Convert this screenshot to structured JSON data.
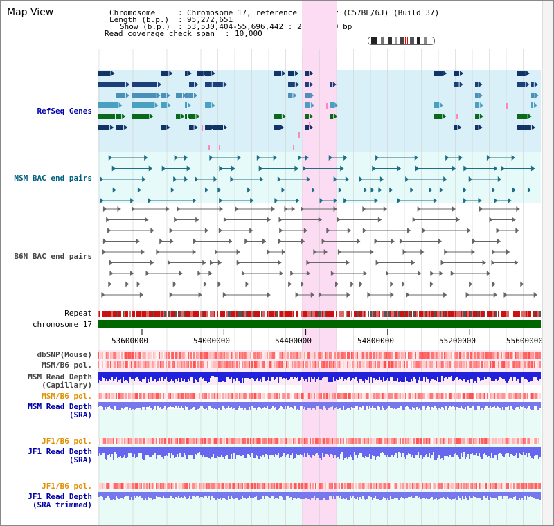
{
  "window": {
    "title": "Map View"
  },
  "info": {
    "chromosome_label": "Chromosome",
    "chromosome_value": "Chromosome 17, reference assembly (C57BL/6J) (Build 37)",
    "length_label": "Length (b.p.)",
    "length_value": "95,272,651",
    "show_label": "Show (b.p.)",
    "show_value": "53,530,404-55,696,442 : 2,166,039 bp",
    "coverage_label": "Read coverage check span",
    "coverage_value": "10,000"
  },
  "tracks": {
    "refseq": "RefSeq Genes",
    "msm_bac": "MSM BAC end pairs",
    "b6n_bac": "B6N BAC end pairs",
    "repeat": "Repeat",
    "chromosome": "chromosome 17",
    "dbsnp": "dbSNP(Mouse)",
    "msm_b6_pol": "MSM/B6 pol.",
    "msm_depth_cap": "MSM Read Depth\n(Capillary)",
    "msm_b6_pol_sra": "MSM/B6 pol.",
    "msm_depth_sra": "MSM Read Depth\n(SRA)",
    "jf1_b6_pol": "JF1/B6 pol.",
    "jf1_depth_sra": "JF1 Read Depth\n(SRA)",
    "jf1_b6_pol_trim": "JF1/B6 pol.",
    "jf1_depth_trim": "JF1 Read Depth\n(SRA trimmed)"
  },
  "axis": {
    "ticks": [
      "53600000",
      "54000000",
      "54400000",
      "54800000",
      "55200000",
      "55600000"
    ],
    "range": [
      53530404,
      55696442
    ]
  },
  "colors": {
    "refseq_bg": "#daf0f8",
    "bac_bg": "#e6fafa",
    "highlight": "#fbdcf3",
    "chromosome": "#006600",
    "label_blue": "#0000aa",
    "label_teal": "#006080",
    "label_gray": "#444444",
    "label_orange": "#e09000"
  }
}
